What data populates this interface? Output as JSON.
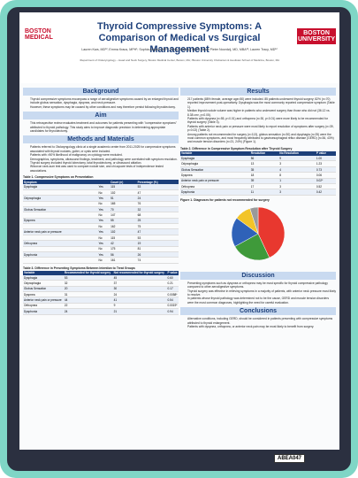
{
  "header": {
    "logo_left": "BOSTON MEDICAL",
    "title": "Thyroid Compressive Symptoms: A Comparison of Medical vs Surgical Management",
    "logo_right": "BOSTON UNIVERSITY",
    "authors": "Lauren Kwa, MD¹²; Emma Kraus, MPH¹; Sophia Angelo, MD¹²; Emily Beilding, MD¹²; Jacob Pieter Noordzij, MD, MBA¹²; Lauren Tracy, MD¹²",
    "affiliation": "¹Department of Otolaryngology – Head and Neck Surgery, Boston Medical Center, Boston, MA; ²Boston University Chobanian & Avedisian School of Medicine, Boston, MA"
  },
  "columns": [
    {
      "blocks": [
        {
          "heading": "Background",
          "bullets": [
            "Thyroid compressive symptoms encompass a range of aerodigestive symptoms caused by an enlarged thyroid and include globus sensation, dysphagia, dyspnea, and neck pressure.",
            "However, these symptoms may be caused by other conditions and may therefore persist following thyroidectomy."
          ]
        },
        {
          "heading": "Aim",
          "bullets": [
            "This retrospective review evaluates treatment and outcomes for patients presenting with \"compressive symptoms\" attributed to thyroid pathology. This study aims to improve diagnostic precision in determining appropriate candidates for thyroidectomy."
          ]
        },
        {
          "heading": "Methods and Materials",
          "bullets": [
            "Patients referred to Otolaryngology clinic at a single academic center from 2011-2025 for compressive symptoms associated with thyroid nodules, goiter, or cysts were included.",
            "Patients with >50% likelihood of malignancy on cytology were excluded.",
            "Demographics, symptoms, ultrasound findings, treatment, and pathology were correlated with symptom resolution.",
            "Thyroid surgery included thyroid lobectomy, total thyroidectomy, or ultrasound ablation.",
            "Wilcoxon rank-sum test was used to compare nodule size, and chi-square tests of independence tested associations."
          ]
        },
        {
          "caption": "Table 1. Compressive Symptoms on Presentation",
          "columns": [
            "Symptom",
            "",
            "Count (n)",
            "Percentage (%)"
          ],
          "rows": [
            [
              "Dysphagia",
              "Yes",
              "115",
              "53"
            ],
            [
              "",
              "No",
              "102",
              "47"
            ],
            [
              "Odynophagia",
              "Yes",
              "51",
              "24"
            ],
            [
              "",
              "No",
              "165",
              "76"
            ],
            [
              "Globus Sensation",
              "Yes",
              "70",
              "32"
            ],
            [
              "",
              "No",
              "147",
              "68"
            ],
            [
              "Dyspnea",
              "Yes",
              "55",
              "25"
            ],
            [
              "",
              "No",
              "162",
              "75"
            ],
            [
              "Anterior neck pain or pressure",
              "Yes",
              "102",
              "47"
            ],
            [
              "",
              "No",
              "115",
              "53"
            ],
            [
              "Orthopnea",
              "Yes",
              "42",
              "19"
            ],
            [
              "",
              "No",
              "175",
              "81"
            ],
            [
              "Dysphonia",
              "Yes",
              "56",
              "26"
            ],
            [
              "",
              "No",
              "161",
              "74"
            ]
          ]
        },
        {
          "caption": "Table 3. Difference in Presenting Symptoms Between Intention to Treat Groups",
          "columns": [
            "Variable",
            "Recommended for thyroid surgery",
            "Not recommended for thyroid surgery",
            "P value"
          ],
          "rows": [
            [
              "Dysphagia",
              "53",
              "45",
              "0.60"
            ],
            [
              "Odynophagia",
              "32",
              "37",
              "0.21"
            ],
            [
              "Globus Sensation",
              "20",
              "30",
              "0.17"
            ],
            [
              "Dyspnea",
              "31",
              "24",
              "0.0058*"
            ],
            [
              "Anterior neck pain or pressure",
              "44",
              "41",
              "0.54"
            ],
            [
              "Orthopnea",
              "22",
              "9",
              "0.0019*"
            ],
            [
              "Dysphonia",
              "24",
              "21",
              "0.94"
            ]
          ]
        }
      ]
    },
    {
      "blocks": [
        {
          "heading": "Results",
          "bullets": [
            "217 patients (88% female, average age=50) were included. 85 patients underwent thyroid surgery; 82% (n=70) reported improvement post-operatively. Dysphagia was the most commonly reported compressive symptom (Table 1).",
            "Median thyroid nodule volume was higher in patients who underwent surgery than those who did not (36.12 vs. 8.38 cm³, p<0.05).",
            "Patients with dyspnea (n=55, p<0.01) and orthopnea (n=30, p<0.01) were more likely to be recommended for thyroid surgery (Table 3).",
            "Patients with anterior neck pain or pressure were most likely to report resolution of symptoms after surgery (n=39, p=0.02) (Table 2).",
            "Among patients not recommended for surgery (n=113), globus sensation (n=30) and dysphagia (n=25) were the most common symptoms, and most frequently attributed to gastroesophageal reflux disease (GERD) (n=36, 43%) and muscle tension disorders (n=21, 24%) (Figure 1)."
          ]
        },
        {
          "caption": "Table 2. Difference in Compressive Symptom Resolution after Thyroid Surgery",
          "columns": [
            "Variable",
            "Resolution",
            "No Resolution",
            "P value"
          ],
          "rows": [
            [
              "Dysphagia",
              "56",
              "9",
              "1.00"
            ],
            [
              "Odynophagia",
              "13",
              "3",
              "1.23"
            ],
            [
              "Globus Sensation",
              "35",
              "4",
              "0.73"
            ],
            [
              "Dyspnea",
              "18",
              "8",
              "0.06"
            ],
            [
              "Anterior neck pain or pressure",
              "39",
              "1",
              "0.02*"
            ],
            [
              "Orthopnea",
              "17",
              "3",
              "0.52"
            ],
            [
              "Dysphonia",
              "11",
              "3",
              "0.42"
            ]
          ]
        },
        {
          "figure": {
            "caption": "Figure 1. Diagnoses for patients not recommended for surgery",
            "values": [
              43,
              24,
              18,
              10,
              5
            ],
            "colors": [
              "#e8382f",
              "#3f9a3a",
              "#2f62b8",
              "#f2c428",
              "#9a9a9a"
            ]
          }
        },
        {
          "heading": "Discussion",
          "bullets": [
            "Presenting symptoms such as dyspnea or orthopnea may be most specific for thyroid compressive pathology compared to other aerodigestive symptoms.",
            "Thyroid surgery was effective in relieving symptoms in a majority of patients, with anterior neck pressure most likely to resolve.",
            "In patients whose thyroid pathology was determined not to be the cause, GERD and muscle tension disorders were the most common diagnoses, highlighting the need for careful evaluation."
          ]
        },
        {
          "heading": "Conclusions",
          "bullets": [
            "Alternative conditions, including GERD, should be considered in patients presenting with compressive symptoms attributed to thyroid enlargement.",
            "Patients with dyspnea, orthopnea, or anterior neck pain may be most likely to benefit from surgery."
          ]
        }
      ]
    }
  ],
  "badge": "ABEA047"
}
